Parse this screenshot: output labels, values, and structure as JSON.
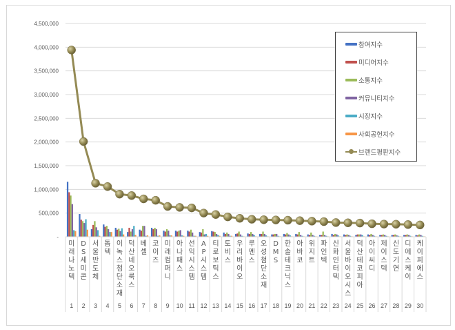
{
  "chart_data": {
    "type": "bar",
    "title": "",
    "xlabel": "",
    "ylabel": "",
    "ylim": [
      0,
      4500000
    ],
    "yticks": [
      "-",
      "500,000",
      "1,000,000",
      "1,500,000",
      "2,000,000",
      "2,500,000",
      "3,000,000",
      "3,500,000",
      "4,000,000",
      "4,500,000"
    ],
    "grid": true,
    "legend_position": "top-right-inside",
    "categories": [
      "미래나노텍",
      "DS세미콘",
      "서울반도체",
      "톱텍",
      "이녹스첨단소재",
      "덕산네오룩스",
      "베셀",
      "코이즈",
      "미래컴퍼니",
      "아나패스",
      "선익시스템",
      "AP시스템",
      "티로보틱스",
      "토비스",
      "우리바이오",
      "루멘스",
      "오성첨단소재",
      "DMS",
      "한솔테크닉스",
      "아바코",
      "위지트",
      "파인텍",
      "신화인터텍",
      "서울바이오시스",
      "덕산테코피아",
      "아이씨디",
      "제이스텍",
      "신도기연",
      "디에스케이",
      "케이피에스"
    ],
    "ranks": [
      "1",
      "2",
      "3",
      "4",
      "5",
      "6",
      "7",
      "8",
      "9",
      "10",
      "11",
      "12",
      "13",
      "14",
      "15",
      "16",
      "17",
      "18",
      "19",
      "20",
      "21",
      "22",
      "23",
      "24",
      "25",
      "26",
      "27",
      "28",
      "29",
      "30"
    ],
    "series": [
      {
        "name": "참여지수",
        "type": "bar",
        "color": "#4472c4",
        "values": [
          1160000,
          480000,
          160000,
          260000,
          190000,
          100000,
          150000,
          190000,
          130000,
          130000,
          130000,
          100000,
          120000,
          90000,
          60000,
          70000,
          60000,
          50000,
          60000,
          60000,
          50000,
          40000,
          60000,
          50000,
          40000,
          50000,
          40000,
          40000,
          40000,
          40000
        ]
      },
      {
        "name": "미디어지수",
        "type": "bar",
        "color": "#c0504d",
        "values": [
          940000,
          360000,
          250000,
          210000,
          150000,
          190000,
          130000,
          160000,
          110000,
          110000,
          110000,
          90000,
          110000,
          60000,
          70000,
          60000,
          60000,
          50000,
          50000,
          50000,
          40000,
          40000,
          40000,
          40000,
          50000,
          40000,
          40000,
          40000,
          40000,
          30000
        ]
      },
      {
        "name": "소통지수",
        "type": "bar",
        "color": "#9bbb59",
        "values": [
          870000,
          330000,
          330000,
          230000,
          170000,
          110000,
          230000,
          190000,
          160000,
          130000,
          150000,
          160000,
          100000,
          90000,
          110000,
          100000,
          110000,
          60000,
          80000,
          100000,
          90000,
          110000,
          60000,
          50000,
          50000,
          60000,
          50000,
          50000,
          50000,
          50000
        ]
      },
      {
        "name": "커뮤니티지수",
        "type": "bar",
        "color": "#8064a2",
        "values": [
          690000,
          290000,
          200000,
          160000,
          120000,
          160000,
          230000,
          160000,
          130000,
          140000,
          90000,
          50000,
          60000,
          60000,
          50000,
          60000,
          60000,
          60000,
          50000,
          40000,
          40000,
          40000,
          50000,
          40000,
          50000,
          40000,
          40000,
          30000,
          40000,
          40000
        ]
      },
      {
        "name": "시장지수",
        "type": "bar",
        "color": "#4bacc6",
        "values": [
          140000,
          370000,
          140000,
          100000,
          180000,
          230000,
          20000,
          20000,
          30000,
          30000,
          20000,
          60000,
          40000,
          20000,
          20000,
          40000,
          30000,
          20000,
          30000,
          20000,
          20000,
          20000,
          30000,
          20000,
          40000,
          20000,
          20000,
          20000,
          20000,
          20000
        ]
      },
      {
        "name": "사회공헌지수",
        "type": "bar",
        "color": "#f79646",
        "values": [
          120000,
          150000,
          20000,
          100000,
          50000,
          40000,
          30000,
          30000,
          30000,
          20000,
          20000,
          20000,
          20000,
          20000,
          10000,
          10000,
          10000,
          10000,
          10000,
          10000,
          10000,
          10000,
          10000,
          10000,
          10000,
          10000,
          10000,
          10000,
          10000,
          10000
        ]
      },
      {
        "name": "브랜드평판지수",
        "type": "line",
        "color": "#948a54",
        "values": [
          3940000,
          2010000,
          1130000,
          1060000,
          900000,
          870000,
          800000,
          770000,
          640000,
          620000,
          610000,
          500000,
          470000,
          420000,
          390000,
          370000,
          360000,
          355000,
          350000,
          340000,
          330000,
          320000,
          300000,
          295000,
          290000,
          275000,
          268000,
          265000,
          258000,
          250000
        ]
      }
    ]
  }
}
